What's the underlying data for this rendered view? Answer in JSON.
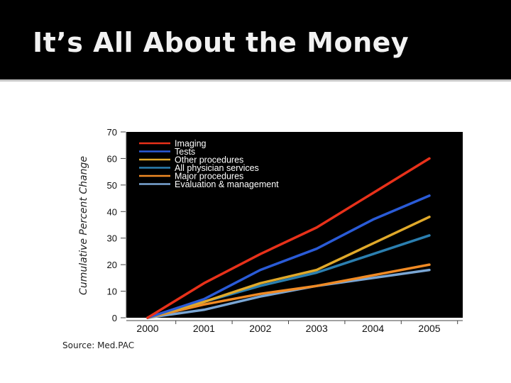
{
  "slide": {
    "title": "It’s All About the Money",
    "source": "Source: Med.PAC"
  },
  "colors": {
    "background": "#000000",
    "plot_background": "#000000",
    "slide_content_background": "#ffffff"
  },
  "chart_data": {
    "type": "line",
    "title": "",
    "xlabel": "",
    "ylabel": "Cumulative Percent Change",
    "x": [
      "2000",
      "2001",
      "2002",
      "2003",
      "2004",
      "2005"
    ],
    "ylim": [
      0,
      70
    ],
    "yticks": [
      0,
      10,
      20,
      30,
      40,
      50,
      60,
      70
    ],
    "grid": false,
    "legend_position": "top-left",
    "series": [
      {
        "name": "Imaging",
        "color": "#e8311a",
        "values": [
          0,
          13,
          24,
          34,
          47,
          60
        ]
      },
      {
        "name": "Tests",
        "color": "#2a5bd7",
        "values": [
          0,
          7,
          18,
          26,
          37,
          46
        ]
      },
      {
        "name": "Other procedures",
        "color": "#e0a92a",
        "values": [
          0,
          6,
          13,
          18,
          28,
          38
        ]
      },
      {
        "name": "All physician services",
        "color": "#2b7fb0",
        "values": [
          0,
          6,
          12,
          17,
          24,
          31
        ]
      },
      {
        "name": "Major procedures",
        "color": "#f08a24",
        "values": [
          0,
          5,
          9,
          12,
          16,
          20
        ]
      },
      {
        "name": "Evaluation & management",
        "color": "#7aa6d4",
        "values": [
          0,
          3,
          8,
          12,
          15,
          18
        ]
      }
    ]
  }
}
